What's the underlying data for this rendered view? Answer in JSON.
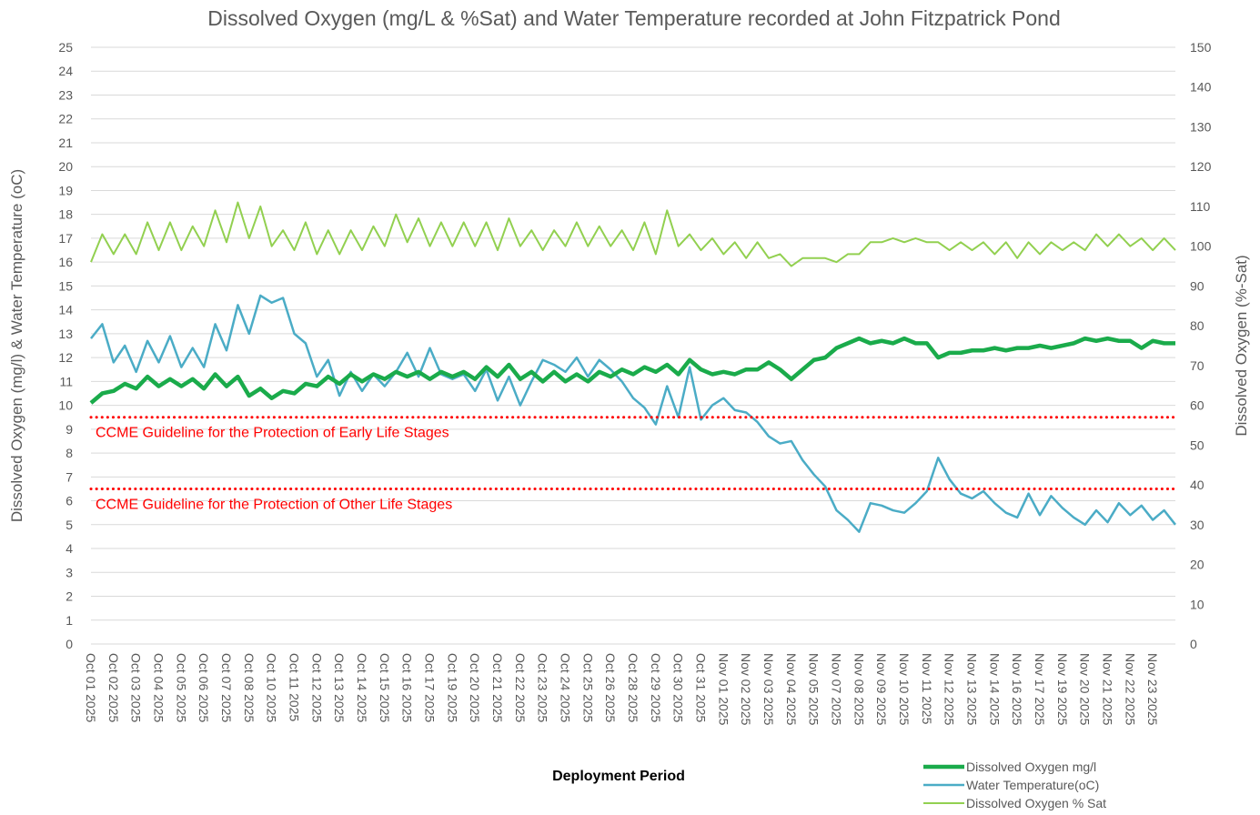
{
  "chart_data": {
    "type": "line",
    "title": "Dissolved Oxygen (mg/L & %Sat) and Water Temperature recorded at John Fitzpatrick Pond",
    "x_label": "Deployment Period",
    "y_label": "Dissolved Oxygen (mg/l) & Water Temperature (oC)",
    "y2_label": "Dissolved Oxygen (%-Sat)",
    "categories": [
      "Oct 01 2025",
      null,
      "Oct 02 2025",
      null,
      "Oct 03 2025",
      null,
      "Oct 04 2025",
      null,
      "Oct 05 2025",
      null,
      "Oct 06 2025",
      null,
      "Oct 07 2025",
      null,
      "Oct 08 2025",
      null,
      "Oct 10 2025",
      null,
      "Oct 11 2025",
      null,
      "Oct 12 2025",
      null,
      "Oct 13 2025",
      null,
      "Oct 14 2025",
      null,
      "Oct 15 2025",
      null,
      "Oct 16 2025",
      null,
      "Oct 17 2025",
      null,
      "Oct 19 2025",
      null,
      "Oct 20 2025",
      null,
      "Oct 21 2025",
      null,
      "Oct 22 2025",
      null,
      "Oct 23 2025",
      null,
      "Oct 24 2025",
      null,
      "Oct 25 2025",
      null,
      "Oct 26 2025",
      null,
      "Oct 28 2025",
      null,
      "Oct 29 2025",
      null,
      "Oct 30 2025",
      null,
      "Oct 31 2025",
      null,
      "Nov 01 2025",
      null,
      "Nov 02 2025",
      null,
      "Nov 03 2025",
      null,
      "Nov 04 2025",
      null,
      "Nov 05 2025",
      null,
      "Nov 07 2025",
      null,
      "Nov 08 2025",
      null,
      "Nov 09 2025",
      null,
      "Nov 10 2025",
      null,
      "Nov 11 2025",
      null,
      "Nov 12 2025",
      null,
      "Nov 13 2025",
      null,
      "Nov 14 2025",
      null,
      "Nov 16 2025",
      null,
      "Nov 17 2025",
      null,
      "Nov 19 2025",
      null,
      "Nov 20 2025",
      null,
      "Nov 21 2025",
      null,
      "Nov 22 2025",
      null,
      "Nov 23 2025",
      null,
      null
    ],
    "series": [
      {
        "name": "Dissolved Oxygen mg/l",
        "color": "#1aab4b",
        "axis": "y",
        "values": [
          10.1,
          10.5,
          10.6,
          10.9,
          10.7,
          11.2,
          10.8,
          11.1,
          10.8,
          11.1,
          10.7,
          11.3,
          10.8,
          11.2,
          10.4,
          10.7,
          10.3,
          10.6,
          10.5,
          10.9,
          10.8,
          11.2,
          10.9,
          11.3,
          11.0,
          11.3,
          11.1,
          11.4,
          11.2,
          11.4,
          11.1,
          11.4,
          11.2,
          11.4,
          11.1,
          11.6,
          11.2,
          11.7,
          11.1,
          11.4,
          11.0,
          11.4,
          11.0,
          11.3,
          11.0,
          11.4,
          11.2,
          11.5,
          11.3,
          11.6,
          11.4,
          11.7,
          11.3,
          11.9,
          11.5,
          11.3,
          11.4,
          11.3,
          11.5,
          11.5,
          11.8,
          11.5,
          11.1,
          11.5,
          11.9,
          12.0,
          12.4,
          12.6,
          12.8,
          12.6,
          12.7,
          12.6,
          12.8,
          12.6,
          12.6,
          12.0,
          12.2,
          12.2,
          12.3,
          12.3,
          12.4,
          12.3,
          12.4,
          12.4,
          12.5,
          12.4,
          12.5,
          12.6,
          12.8,
          12.7,
          12.8,
          12.7,
          12.7,
          12.4,
          12.7,
          12.6,
          12.6
        ]
      },
      {
        "name": "Water Temperature(oC)",
        "color": "#4bacc6",
        "axis": "y",
        "values": [
          12.8,
          13.4,
          11.8,
          12.5,
          11.4,
          12.7,
          11.8,
          12.9,
          11.6,
          12.4,
          11.6,
          13.4,
          12.3,
          14.2,
          13.0,
          14.6,
          14.3,
          14.5,
          13.0,
          12.6,
          11.2,
          11.9,
          10.4,
          11.4,
          10.6,
          11.3,
          10.8,
          11.4,
          12.2,
          11.2,
          12.4,
          11.3,
          11.1,
          11.3,
          10.6,
          11.5,
          10.2,
          11.2,
          10.0,
          11.0,
          11.9,
          11.7,
          11.4,
          12.0,
          11.2,
          11.9,
          11.5,
          11.0,
          10.3,
          9.9,
          9.2,
          10.8,
          9.5,
          11.6,
          9.4,
          10.0,
          10.3,
          9.8,
          9.7,
          9.3,
          8.7,
          8.4,
          8.5,
          7.7,
          7.1,
          6.6,
          5.6,
          5.2,
          4.7,
          5.9,
          5.8,
          5.6,
          5.5,
          5.9,
          6.4,
          7.8,
          6.9,
          6.3,
          6.1,
          6.4,
          5.9,
          5.5,
          5.3,
          6.3,
          5.4,
          6.2,
          5.7,
          5.3,
          5.0,
          5.6,
          5.1,
          5.9,
          5.4,
          5.8,
          5.2,
          5.6,
          5.0
        ]
      },
      {
        "name": "Dissolved Oxygen % Sat",
        "color": "#92d050",
        "axis": "y2",
        "values": [
          96,
          103,
          98,
          103,
          98,
          106,
          99,
          106,
          99,
          105,
          100,
          109,
          101,
          111,
          102,
          110,
          100,
          104,
          99,
          106,
          98,
          104,
          98,
          104,
          99,
          105,
          100,
          108,
          101,
          107,
          100,
          106,
          100,
          106,
          100,
          106,
          99,
          107,
          100,
          104,
          99,
          104,
          100,
          106,
          100,
          105,
          100,
          104,
          99,
          106,
          98,
          109,
          100,
          103,
          99,
          102,
          98,
          101,
          97,
          101,
          97,
          98,
          95,
          97,
          97,
          97,
          96,
          98,
          98,
          101,
          101,
          102,
          101,
          102,
          101,
          101,
          99,
          101,
          99,
          101,
          98,
          101,
          97,
          101,
          98,
          101,
          99,
          101,
          99,
          103,
          100,
          103,
          100,
          102,
          99,
          102,
          99
        ]
      }
    ],
    "reference_lines": [
      {
        "value": 9.5,
        "label": "CCME Guideline for the Protection of Early Life Stages",
        "color": "#ff0000"
      },
      {
        "value": 6.5,
        "label": "CCME Guideline for the Protection of Other Life Stages",
        "color": "#ff0000"
      }
    ],
    "ylim": [
      0,
      25
    ],
    "yticks": [
      0,
      1,
      2,
      3,
      4,
      5,
      6,
      7,
      8,
      9,
      10,
      11,
      12,
      13,
      14,
      15,
      16,
      17,
      18,
      19,
      20,
      21,
      22,
      23,
      24,
      25
    ],
    "y2lim": [
      0,
      150
    ],
    "y2ticks": [
      0,
      10,
      20,
      30,
      40,
      50,
      60,
      70,
      80,
      90,
      100,
      110,
      120,
      130,
      140,
      150
    ],
    "grid": true,
    "legend": "bottom-right"
  }
}
